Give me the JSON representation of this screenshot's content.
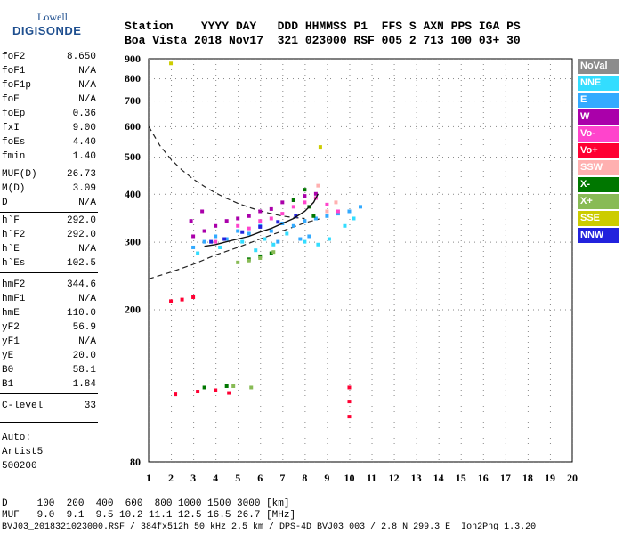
{
  "logo": {
    "top": "Lowell",
    "bottom": "DIGISONDE"
  },
  "header": {
    "row1": "Station    YYYY DAY   DDD HHMMSS P1  FFS S AXN PPS IGA PS",
    "row2": "Boa Vista 2018 Nov17  321 023000 RSF 005 2 713 100 03+ 30"
  },
  "params": [
    {
      "label": "foF2",
      "value": "8.650"
    },
    {
      "label": "foF1",
      "value": "N/A"
    },
    {
      "label": "foF1p",
      "value": "N/A"
    },
    {
      "label": "foE",
      "value": "N/A"
    },
    {
      "label": "foEp",
      "value": "0.36"
    },
    {
      "label": "fxI",
      "value": "9.00"
    },
    {
      "label": "foEs",
      "value": "4.40"
    },
    {
      "label": "fmin",
      "value": "1.40"
    },
    {
      "label": "MUF(D)",
      "value": "26.73"
    },
    {
      "label": "M(D)",
      "value": "3.09"
    },
    {
      "label": "D",
      "value": "N/A"
    },
    {
      "label": "h`F",
      "value": "292.0"
    },
    {
      "label": "h`F2",
      "value": "292.0"
    },
    {
      "label": "h`E",
      "value": "N/A"
    },
    {
      "label": "h`Es",
      "value": "102.5"
    },
    {
      "label": "hmF2",
      "value": "344.6"
    },
    {
      "label": "hmF1",
      "value": "N/A"
    },
    {
      "label": "hmE",
      "value": "110.0"
    },
    {
      "label": "yF2",
      "value": "56.9"
    },
    {
      "label": "yF1",
      "value": "N/A"
    },
    {
      "label": "yE",
      "value": "20.0"
    },
    {
      "label": "B0",
      "value": "58.1"
    },
    {
      "label": "B1",
      "value": "1.84"
    },
    {
      "label": "C-level",
      "value": "33"
    }
  ],
  "auto": {
    "line1": "Auto:",
    "line2": "Artist5",
    "line3": "500200"
  },
  "footer": {
    "d_row": "D     100  200  400  600  800 1000 1500 3000 [km]",
    "muf_row": "MUF   9.0  9.1  9.5 10.2 11.1 12.5 16.5 26.7 [MHz]",
    "file_row": "BVJ03_2018321023000.RSF / 384fx512h 50 kHz 2.5 km / DPS-4D BVJ03 003 / 2.8 N 299.3 E  Ion2Png 1.3.20"
  },
  "legend": [
    {
      "label": "NoVal",
      "color": "#8c8c8c"
    },
    {
      "label": "NNE",
      "color": "#33ddff"
    },
    {
      "label": "E",
      "color": "#33aaff"
    },
    {
      "label": "W",
      "color": "#aa00aa"
    },
    {
      "label": "Vo-",
      "color": "#ff44cc"
    },
    {
      "label": "Vo+",
      "color": "#ff0033"
    },
    {
      "label": "SSW",
      "color": "#ffb0b0"
    },
    {
      "label": "X-",
      "color": "#007700"
    },
    {
      "label": "X+",
      "color": "#88bb55"
    },
    {
      "label": "SSE",
      "color": "#cccc00"
    },
    {
      "label": "NNW",
      "color": "#2222dd"
    }
  ],
  "chart_data": {
    "type": "scatter",
    "xlabel": "",
    "ylabel": "",
    "xlim": [
      1,
      20
    ],
    "ylim": [
      80,
      900
    ],
    "x_ticks": [
      1,
      2,
      3,
      4,
      5,
      6,
      7,
      8,
      9,
      10,
      11,
      12,
      13,
      14,
      15,
      16,
      17,
      18,
      19,
      20
    ],
    "y_ticks": [
      80,
      200,
      300,
      400,
      500,
      600,
      700,
      800,
      900
    ],
    "y_scale": "log",
    "grid": true,
    "series": [
      {
        "name": "E",
        "color": "#33aaff",
        "points": [
          [
            3.0,
            290
          ],
          [
            3.5,
            300
          ],
          [
            4.0,
            310
          ],
          [
            4.5,
            305
          ],
          [
            5.0,
            320
          ],
          [
            5.5,
            315
          ],
          [
            6.0,
            330
          ],
          [
            6.5,
            320
          ],
          [
            7.0,
            335
          ],
          [
            7.5,
            330
          ],
          [
            8.0,
            340
          ],
          [
            8.5,
            345
          ],
          [
            9.0,
            350
          ],
          [
            9.5,
            355
          ],
          [
            10.0,
            360
          ],
          [
            10.5,
            370
          ],
          [
            8.2,
            310
          ],
          [
            7.8,
            305
          ],
          [
            6.8,
            300
          ]
        ]
      },
      {
        "name": "NNE",
        "color": "#33ddff",
        "points": [
          [
            3.2,
            280
          ],
          [
            4.2,
            290
          ],
          [
            5.2,
            300
          ],
          [
            6.2,
            305
          ],
          [
            7.2,
            315
          ],
          [
            8.0,
            300
          ],
          [
            8.6,
            295
          ],
          [
            9.1,
            305
          ],
          [
            9.8,
            330
          ],
          [
            10.2,
            345
          ],
          [
            6.6,
            295
          ],
          [
            5.8,
            285
          ]
        ]
      },
      {
        "name": "W",
        "color": "#aa00aa",
        "points": [
          [
            3.0,
            310
          ],
          [
            3.5,
            320
          ],
          [
            4.0,
            330
          ],
          [
            4.5,
            340
          ],
          [
            5.0,
            345
          ],
          [
            5.5,
            350
          ],
          [
            6.0,
            360
          ],
          [
            6.5,
            365
          ],
          [
            7.0,
            380
          ],
          [
            7.5,
            385
          ],
          [
            8.0,
            395
          ],
          [
            8.5,
            400
          ],
          [
            2.9,
            340
          ],
          [
            3.4,
            360
          ]
        ]
      },
      {
        "name": "Vo-",
        "color": "#ff44cc",
        "points": [
          [
            4.0,
            300
          ],
          [
            5.0,
            330
          ],
          [
            6.0,
            340
          ],
          [
            7.0,
            355
          ],
          [
            7.5,
            370
          ],
          [
            8.0,
            380
          ],
          [
            8.5,
            390
          ],
          [
            9.0,
            375
          ],
          [
            9.5,
            360
          ],
          [
            6.5,
            345
          ],
          [
            5.5,
            325
          ]
        ]
      },
      {
        "name": "Vo+",
        "color": "#ff0033",
        "points": [
          [
            2.0,
            210
          ],
          [
            2.5,
            212
          ],
          [
            3.0,
            215
          ],
          [
            2.2,
            120
          ],
          [
            3.2,
            122
          ],
          [
            4.0,
            123
          ],
          [
            4.6,
            121
          ],
          [
            10.0,
            125
          ],
          [
            10.0,
            115
          ],
          [
            10.0,
            105
          ]
        ]
      },
      {
        "name": "X-",
        "color": "#007700",
        "points": [
          [
            5.5,
            270
          ],
          [
            6.0,
            275
          ],
          [
            6.5,
            280
          ],
          [
            7.5,
            385
          ],
          [
            8.0,
            410
          ],
          [
            8.2,
            370
          ],
          [
            8.4,
            350
          ],
          [
            3.5,
            125
          ],
          [
            4.5,
            126
          ]
        ]
      },
      {
        "name": "X+",
        "color": "#88bb55",
        "points": [
          [
            5.0,
            265
          ],
          [
            5.5,
            268
          ],
          [
            6.0,
            272
          ],
          [
            6.6,
            282
          ],
          [
            4.8,
            126
          ],
          [
            5.6,
            125
          ]
        ]
      },
      {
        "name": "NNW",
        "color": "#2222dd",
        "points": [
          [
            3.8,
            300
          ],
          [
            4.4,
            305
          ],
          [
            5.2,
            318
          ],
          [
            6.0,
            328
          ],
          [
            6.8,
            338
          ],
          [
            7.6,
            350
          ]
        ]
      },
      {
        "name": "SSW",
        "color": "#ffb0b0",
        "points": [
          [
            9.0,
            360
          ],
          [
            9.4,
            380
          ],
          [
            8.6,
            420
          ]
        ]
      },
      {
        "name": "SSE",
        "color": "#cccc00",
        "points": [
          [
            8.7,
            530
          ],
          [
            2.0,
            875
          ]
        ]
      }
    ],
    "trace_x": [
      3.5,
      4.0,
      4.5,
      5.0,
      5.5,
      6.0,
      6.5,
      7.0,
      7.5,
      8.0,
      8.4,
      8.6
    ],
    "trace_y": [
      292,
      295,
      300,
      305,
      310,
      318,
      325,
      335,
      345,
      360,
      380,
      400
    ],
    "profile_x": [
      1.0,
      1.5,
      2.0,
      2.5,
      3.0,
      3.5,
      4.0,
      4.5,
      5.0,
      5.5,
      6.0,
      6.5,
      7.0,
      7.5,
      8.0
    ],
    "profile_y": [
      600,
      535,
      492,
      461,
      437,
      418,
      402,
      389,
      378,
      369,
      361,
      355,
      350,
      347,
      345
    ],
    "profile_lower_x": [
      1.0,
      2.0,
      3.0,
      4.0,
      5.0,
      6.0,
      7.0,
      8.0,
      8.65
    ],
    "profile_lower_y": [
      240,
      250,
      262,
      277,
      290,
      305,
      320,
      336,
      344
    ]
  }
}
